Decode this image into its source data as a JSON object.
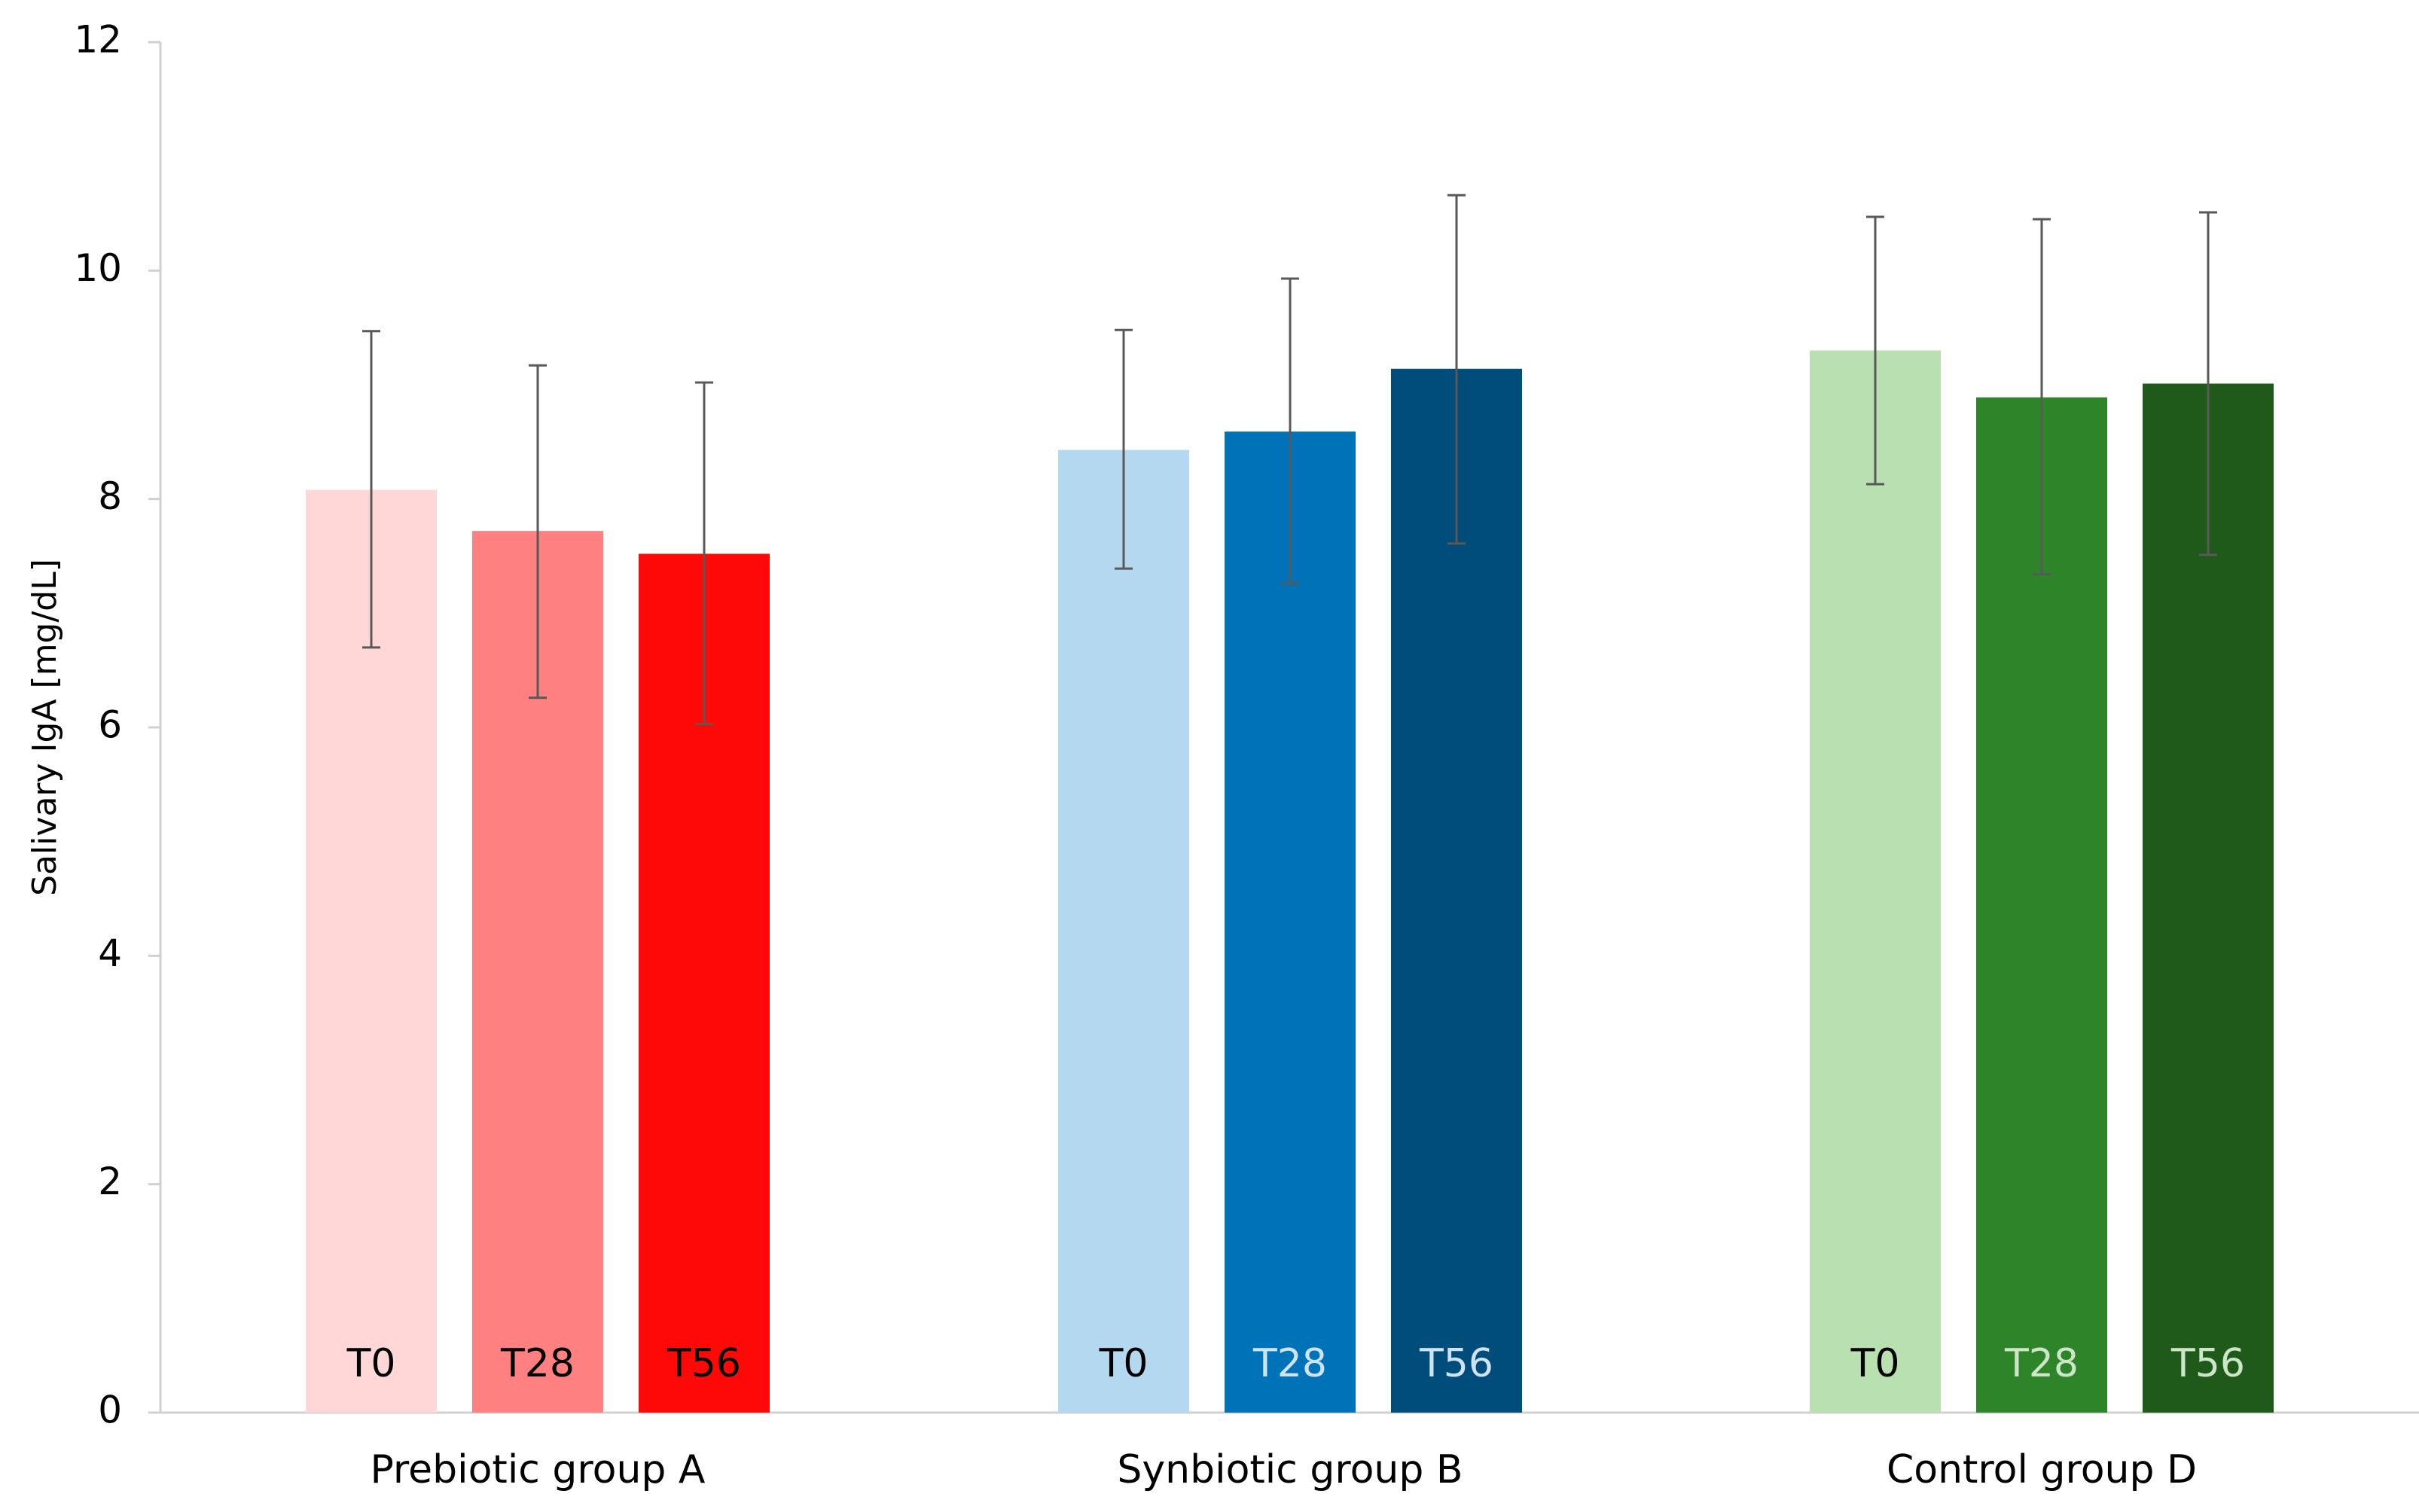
{
  "chart_data": {
    "type": "bar",
    "title": "",
    "xlabel": "",
    "ylabel": "Salivary IgA [mg/dL]",
    "ylim": [
      0,
      12
    ],
    "yticks": [
      0,
      2,
      4,
      6,
      8,
      10,
      12
    ],
    "grid": false,
    "legend": "none",
    "groups": [
      {
        "name": "Prebiotic group A",
        "bars": [
          {
            "label": "T0",
            "value": 8.08,
            "err_low": 6.7,
            "err_high": 9.47,
            "color": "#FFD7D7",
            "label_color": "#000000"
          },
          {
            "label": "T28",
            "value": 7.72,
            "err_low": 6.26,
            "err_high": 9.17,
            "color": "#FF8080",
            "label_color": "#000000"
          },
          {
            "label": "T56",
            "value": 7.52,
            "err_low": 6.03,
            "err_high": 9.02,
            "color": "#FF0808",
            "label_color": "#000000"
          }
        ]
      },
      {
        "name": "Synbiotic group B",
        "bars": [
          {
            "label": "T0",
            "value": 8.43,
            "err_low": 7.39,
            "err_high": 9.48,
            "color": "#B4D8F0",
            "label_color": "#000000"
          },
          {
            "label": "T28",
            "value": 8.59,
            "err_low": 7.26,
            "err_high": 9.93,
            "color": "#0073B8",
            "label_color": "#CFE4F3"
          },
          {
            "label": "T56",
            "value": 9.14,
            "err_low": 7.61,
            "err_high": 10.66,
            "color": "#004C7A",
            "label_color": "#CFE4F3"
          }
        ]
      },
      {
        "name": "Control group D",
        "bars": [
          {
            "label": "T0",
            "value": 9.3,
            "err_low": 8.13,
            "err_high": 10.47,
            "color": "#B8E0B0",
            "label_color": "#000000"
          },
          {
            "label": "T28",
            "value": 8.89,
            "err_low": 7.34,
            "err_high": 10.45,
            "color": "#2E8428",
            "label_color": "#CDE6C8"
          },
          {
            "label": "T56",
            "value": 9.01,
            "err_low": 7.51,
            "err_high": 10.51,
            "color": "#205A1B",
            "label_color": "#CDE6C8"
          }
        ]
      }
    ]
  }
}
